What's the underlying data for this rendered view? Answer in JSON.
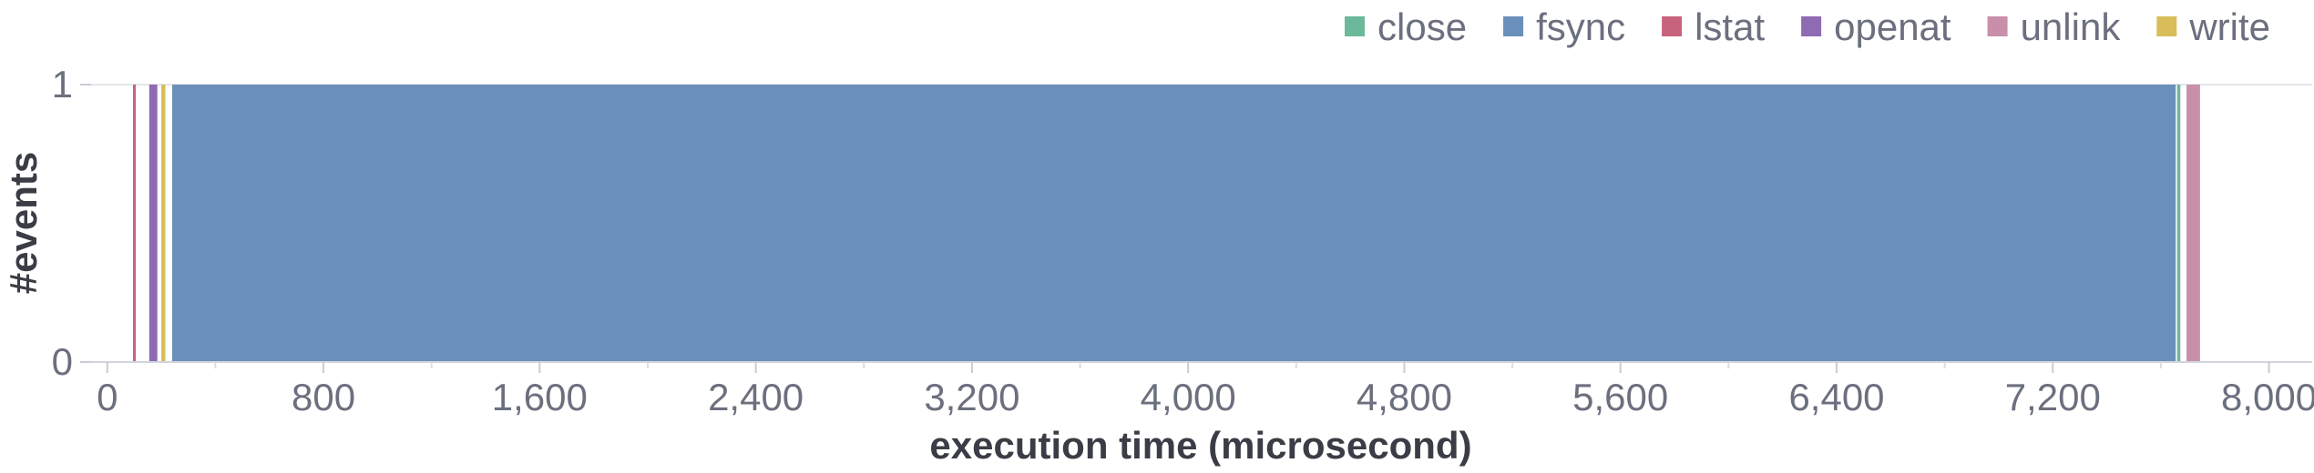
{
  "chart_data": {
    "type": "bar",
    "title": "",
    "xlabel": "execution time (microsecond)",
    "ylabel": "#events",
    "xlim": [
      -60,
      8160
    ],
    "ylim": [
      0,
      1
    ],
    "x_ticks": [
      0,
      800,
      1600,
      2400,
      3200,
      4000,
      4800,
      5600,
      6400,
      7200,
      8000
    ],
    "x_tick_labels": [
      "0",
      "800",
      "1,600",
      "2,400",
      "3,200",
      "4,000",
      "4,800",
      "5,600",
      "6,400",
      "7,200",
      "8,000"
    ],
    "y_ticks": [
      0,
      1
    ],
    "y_tick_labels": [
      "0",
      "1"
    ],
    "grid": false,
    "legend_position": "top-right",
    "series": [
      {
        "name": "close",
        "color": "#6cb89a",
        "events": [
          {
            "start": 7660,
            "end": 7672,
            "value": 1
          }
        ]
      },
      {
        "name": "fsync",
        "color": "#6a8fbb",
        "events": [
          {
            "start": 240,
            "end": 7655,
            "value": 1
          }
        ]
      },
      {
        "name": "lstat",
        "color": "#c8637c",
        "events": [
          {
            "start": 95,
            "end": 103,
            "value": 1
          }
        ]
      },
      {
        "name": "openat",
        "color": "#8f6bb3",
        "events": [
          {
            "start": 155,
            "end": 185,
            "value": 1
          }
        ]
      },
      {
        "name": "unlink",
        "color": "#c98faa",
        "events": [
          {
            "start": 7695,
            "end": 7745,
            "value": 1
          }
        ]
      },
      {
        "name": "write",
        "color": "#d8bd5a",
        "events": [
          {
            "start": 200,
            "end": 215,
            "value": 1
          }
        ]
      }
    ]
  }
}
